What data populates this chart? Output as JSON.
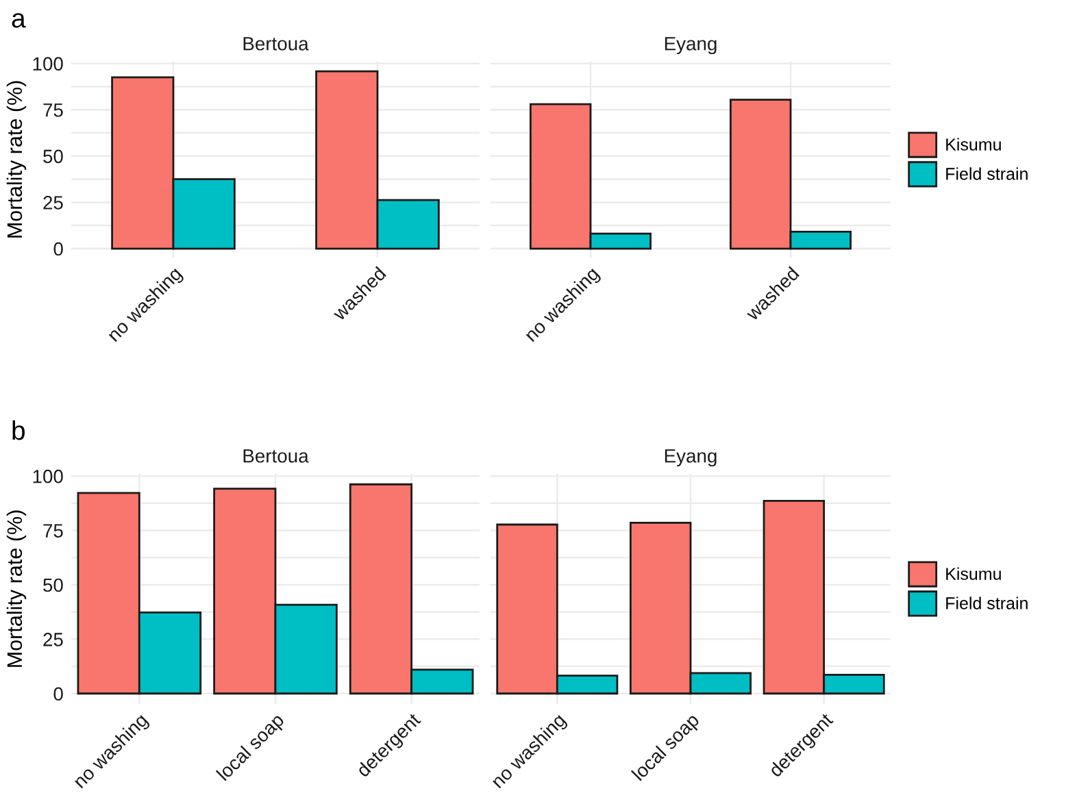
{
  "chart_data": [
    {
      "type": "bar",
      "title": "Bertoua",
      "ylabel": "Mortality rate (%)",
      "annotations": [
        "a"
      ],
      "categories": [
        "no washing",
        "washed"
      ],
      "series": [
        {
          "color": "#f8766d",
          "values": [
            92.5,
            95.8
          ]
        },
        {
          "color": "#00bfc4",
          "values": [
            37.5,
            26.2
          ]
        }
      ],
      "ylim": [
        -4.8,
        101
      ],
      "yticks": [
        0,
        {
          "value": 12.5,
          "label": null
        },
        25,
        {
          "value": 37.5,
          "label": null
        },
        50,
        {
          "value": 62.5,
          "label": null
        },
        75,
        {
          "value": 87.5,
          "label": null
        },
        100
      ],
      "grid": true
    },
    {
      "type": "bar",
      "title": "Eyang",
      "categories": [
        "no washing",
        "washed"
      ],
      "series": [
        {
          "name": "Kisumu",
          "color": "#f8766d",
          "values": [
            78,
            80.4
          ]
        },
        {
          "name": "Field strain",
          "color": "#00bfc4",
          "values": [
            8.1,
            9.1
          ]
        }
      ],
      "ylim": [
        -4.8,
        101
      ],
      "yticks": [
        0,
        {
          "value": 12.5,
          "label": null
        },
        25,
        {
          "value": 37.5,
          "label": null
        },
        50,
        {
          "value": 62.5,
          "label": null
        },
        75,
        {
          "value": 87.5,
          "label": null
        },
        100
      ],
      "grid": true,
      "legend": "right",
      "tick_labels": "x"
    },
    {
      "type": "bar",
      "title": "Bertoua",
      "ylabel": "Mortality rate (%)",
      "annotations": [
        "b"
      ],
      "categories": [
        "no washing",
        "local soap",
        "detergent"
      ],
      "series": [
        {
          "color": "#f8766d",
          "values": [
            92.2,
            94.2,
            96.2
          ]
        },
        {
          "color": "#00bfc4",
          "values": [
            37.3,
            40.8,
            11
          ]
        }
      ],
      "ylim": [
        -4.8,
        101
      ],
      "yticks": [
        0,
        {
          "value": 12.5,
          "label": null
        },
        25,
        {
          "value": 37.5,
          "label": null
        },
        50,
        {
          "value": 62.5,
          "label": null
        },
        75,
        {
          "value": 87.5,
          "label": null
        },
        100
      ],
      "grid": true
    },
    {
      "type": "bar",
      "title": "Eyang",
      "categories": [
        "no washing",
        "local soap",
        "detergent"
      ],
      "series": [
        {
          "name": "Kisumu",
          "color": "#f8766d",
          "values": [
            77.7,
            78.5,
            88.6
          ]
        },
        {
          "name": "Field strain",
          "color": "#00bfc4",
          "values": [
            8.2,
            9.4,
            8.6
          ]
        }
      ],
      "ylim": [
        -4.8,
        101
      ],
      "yticks": [
        0,
        {
          "value": 12.5,
          "label": null
        },
        25,
        {
          "value": 37.5,
          "label": null
        },
        50,
        {
          "value": 62.5,
          "label": null
        },
        75,
        {
          "value": 87.5,
          "label": null
        },
        100
      ],
      "grid": true,
      "legend": "right",
      "tick_labels": "x"
    }
  ]
}
